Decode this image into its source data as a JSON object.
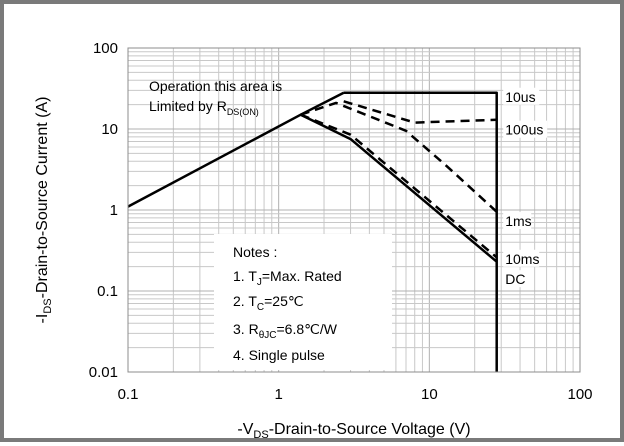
{
  "chart_data": {
    "type": "line",
    "title": "",
    "log_x": true,
    "log_y": true,
    "xlim": [
      0.1,
      100
    ],
    "ylim": [
      0.01,
      100
    ],
    "grid": true,
    "xlabel": {
      "prefix": "-V",
      "sub": "DS",
      "rest": "-Drain-to-Source Voltage (V)"
    },
    "ylabel": {
      "prefix": "-I",
      "sub": "DS",
      "rest": "-Drain-to-Source Current (A)"
    },
    "x_ticks": [
      {
        "value": 0.1,
        "label": "0.1"
      },
      {
        "value": 1,
        "label": "1"
      },
      {
        "value": 10,
        "label": "10"
      },
      {
        "value": 100,
        "label": "100"
      }
    ],
    "y_ticks": [
      {
        "value": 0.01,
        "label": "0.01"
      },
      {
        "value": 0.1,
        "label": "0.1"
      },
      {
        "value": 1,
        "label": "1"
      },
      {
        "value": 10,
        "label": "10"
      },
      {
        "value": 100,
        "label": "100"
      }
    ],
    "series": [
      {
        "key": "rds_limit",
        "style": "solid",
        "x": [
          0.1,
          1.4,
          2.7
        ],
        "y": [
          1.1,
          15,
          28
        ]
      },
      {
        "key": "10us",
        "style": "dashed",
        "x": [
          2.7,
          15,
          28
        ],
        "y": [
          28,
          28,
          28
        ]
      },
      {
        "key": "10us_cap",
        "style": "solid",
        "x": [
          2.7,
          28,
          28
        ],
        "y": [
          28,
          28,
          0.01
        ]
      },
      {
        "key": "100us",
        "style": "dashed",
        "x": [
          2.7,
          8,
          28
        ],
        "y": [
          22,
          12,
          13
        ]
      },
      {
        "key": "1ms",
        "style": "dashed",
        "x": [
          1.4,
          2.4,
          7,
          13,
          28
        ],
        "y": [
          15,
          21,
          9.5,
          3.5,
          0.95
        ]
      },
      {
        "key": "10ms",
        "style": "dashed",
        "x": [
          1.4,
          3,
          28
        ],
        "y": [
          15,
          8.5,
          0.26
        ]
      },
      {
        "key": "dc",
        "style": "solid",
        "x": [
          1.4,
          3,
          28
        ],
        "y": [
          15,
          7.5,
          0.23
        ]
      }
    ],
    "curve_labels": [
      {
        "text": "10us",
        "x": 30,
        "y": 25
      },
      {
        "text": "100us",
        "x": 30,
        "y": 9.8
      },
      {
        "text": "1ms",
        "x": 30,
        "y": 0.73
      },
      {
        "text": "10ms",
        "x": 30,
        "y": 0.25
      },
      {
        "text": "DC",
        "x": 30,
        "y": 0.14
      }
    ],
    "area_note": {
      "line1": "Operation this area is",
      "line2_text": "Limited  by R",
      "line2_sub": "DS(ON)"
    },
    "notes": {
      "title": "Notes :",
      "items": [
        {
          "pre": "1. T",
          "sub": "J",
          "post": "=Max. Rated"
        },
        {
          "pre": "2. T",
          "sub": "C",
          "post": "=25℃"
        },
        {
          "pre": "3. R",
          "sub": "θJC",
          "post": "=6.8℃/W"
        },
        {
          "pre": "4. Single pulse",
          "sub": "",
          "post": ""
        }
      ]
    }
  }
}
